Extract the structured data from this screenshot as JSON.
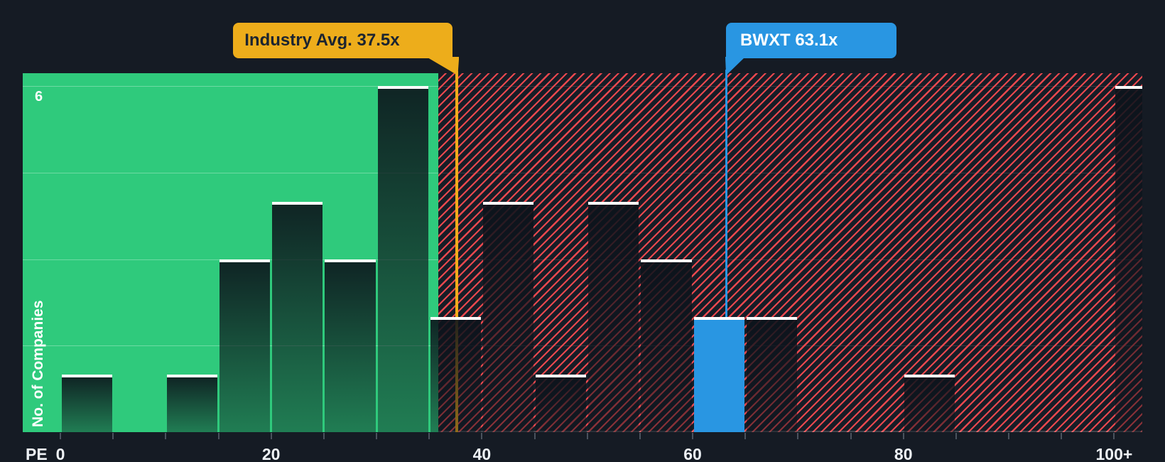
{
  "chart_data": {
    "type": "bar",
    "ylabel": "No. of Companies",
    "xlabel": "PE",
    "y_axis_top_tick": "6",
    "ylim": [
      0,
      6.2
    ],
    "grid_values": [
      1.5,
      3,
      4.5,
      6
    ],
    "bin_width": 5,
    "bins": [
      {
        "range": "0-5",
        "count": 1
      },
      {
        "range": "5-10",
        "count": 0
      },
      {
        "range": "10-15",
        "count": 1
      },
      {
        "range": "15-20",
        "count": 3
      },
      {
        "range": "20-25",
        "count": 4
      },
      {
        "range": "25-30",
        "count": 3
      },
      {
        "range": "30-35",
        "count": 6
      },
      {
        "range": "35-40",
        "count": 2
      },
      {
        "range": "40-45",
        "count": 4
      },
      {
        "range": "45-50",
        "count": 1
      },
      {
        "range": "50-55",
        "count": 4
      },
      {
        "range": "55-60",
        "count": 3
      },
      {
        "range": "60-65",
        "count": 2,
        "highlight": "company"
      },
      {
        "range": "65-70",
        "count": 2
      },
      {
        "range": "70-75",
        "count": 0
      },
      {
        "range": "75-80",
        "count": 0
      },
      {
        "range": "80-85",
        "count": 1
      },
      {
        "range": "85-90",
        "count": 0
      },
      {
        "range": "90-95",
        "count": 0
      },
      {
        "range": "95-100",
        "count": 0
      },
      {
        "range": "100+",
        "count": 6
      }
    ],
    "x_tick_labels": [
      {
        "pe": 0,
        "label": "0"
      },
      {
        "pe": 20,
        "label": "20"
      },
      {
        "pe": 40,
        "label": "40"
      },
      {
        "pe": 60,
        "label": "60"
      },
      {
        "pe": 80,
        "label": "80"
      },
      {
        "pe": 100,
        "label": "100+"
      }
    ],
    "annotations": {
      "industry": {
        "label": "Industry Avg. 37.5x",
        "value": 37.5
      },
      "company": {
        "label": "BWXT 63.1x",
        "value": 63.1
      }
    },
    "colors": {
      "background": "#151b24",
      "below_avg_zone": "#2fca7c",
      "above_avg_hatch": "#e9484e",
      "bar_cap": "#ffffff",
      "company_accent": "#2996e2",
      "industry_accent": "#edad1b",
      "callout_text_dark": "#1b2430",
      "axis_text": "#eef2f6"
    }
  }
}
